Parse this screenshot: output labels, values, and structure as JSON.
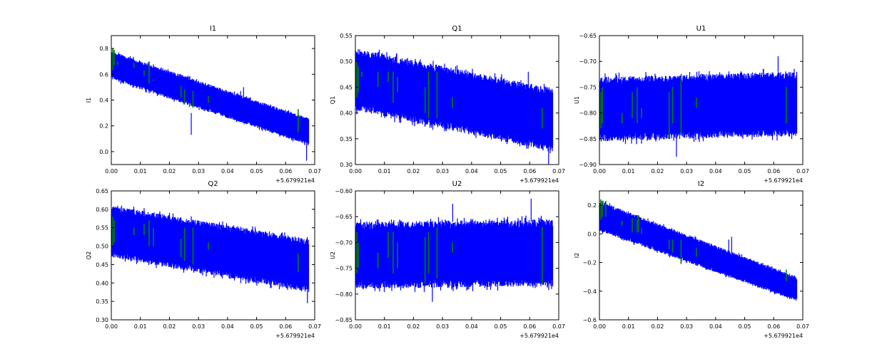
{
  "chart_data": [
    {
      "type": "line",
      "title": "I1",
      "ylabel": "I1",
      "xlim": [
        0,
        0.07
      ],
      "ylim": [
        -0.1,
        0.9
      ],
      "xticks": [
        "0.00",
        "0.01",
        "0.02",
        "0.03",
        "0.04",
        "0.05",
        "0.06",
        "0.07"
      ],
      "yticks": [
        0.0,
        0.2,
        0.4,
        0.6,
        0.8
      ],
      "ytick_labels": [
        "0.0",
        "0.2",
        "0.4",
        "0.6",
        "0.8"
      ],
      "x_offset": "+5.679921e4",
      "series": [
        {
          "name": "blue",
          "color": "#0000ff",
          "x_end": 0.068,
          "lower": [
            0.56,
            0.05
          ],
          "upper": [
            0.78,
            0.26
          ],
          "spikes": [
            [
              0.0275,
              0.13,
              0.3
            ],
            [
              0.0445,
              0.4,
              0.47
            ],
            [
              0.0455,
              0.4,
              0.5
            ],
            [
              0.0672,
              -0.07,
              0.1
            ]
          ]
        },
        {
          "name": "green",
          "color": "#008000",
          "segments": [
            [
              0.0005,
              0.63,
              0.8
            ],
            [
              0.001,
              0.67,
              0.79
            ],
            [
              0.0022,
              0.67,
              0.7
            ],
            [
              0.0078,
              0.65,
              0.69
            ],
            [
              0.0113,
              0.59,
              0.63
            ],
            [
              0.013,
              0.53,
              0.7
            ],
            [
              0.0145,
              0.55,
              0.56
            ],
            [
              0.024,
              0.42,
              0.51
            ],
            [
              0.0252,
              0.38,
              0.48
            ],
            [
              0.0281,
              0.34,
              0.47
            ],
            [
              0.0334,
              0.38,
              0.43
            ],
            [
              0.0643,
              0.15,
              0.33
            ]
          ]
        }
      ]
    },
    {
      "type": "line",
      "title": "Q1",
      "ylabel": "Q1",
      "xlim": [
        0,
        0.07
      ],
      "ylim": [
        0.3,
        0.55
      ],
      "xticks": [
        "0.00",
        "0.01",
        "0.02",
        "0.03",
        "0.04",
        "0.05",
        "0.06",
        "0.07"
      ],
      "yticks": [
        0.3,
        0.35,
        0.4,
        0.45,
        0.5,
        0.55
      ],
      "ytick_labels": [
        "0.30",
        "0.35",
        "0.40",
        "0.45",
        "0.50",
        "0.55"
      ],
      "x_offset": "+5.679921e4",
      "series": [
        {
          "name": "blue",
          "color": "#0000ff",
          "x_end": 0.068,
          "lower": [
            0.405,
            0.325
          ],
          "upper": [
            0.525,
            0.448
          ],
          "spikes": [
            [
              0.0665,
              0.3,
              0.34
            ],
            [
              0.0595,
              0.43,
              0.48
            ]
          ]
        },
        {
          "name": "green",
          "color": "#008000",
          "segments": [
            [
              0.0005,
              0.43,
              0.5
            ],
            [
              0.001,
              0.44,
              0.49
            ],
            [
              0.0022,
              0.47,
              0.48
            ],
            [
              0.0078,
              0.45,
              0.48
            ],
            [
              0.0113,
              0.46,
              0.48
            ],
            [
              0.013,
              0.42,
              0.48
            ],
            [
              0.0145,
              0.44,
              0.47
            ],
            [
              0.024,
              0.4,
              0.45
            ],
            [
              0.0252,
              0.39,
              0.48
            ],
            [
              0.0281,
              0.39,
              0.48
            ],
            [
              0.0334,
              0.41,
              0.43
            ],
            [
              0.0643,
              0.37,
              0.41
            ]
          ]
        }
      ]
    },
    {
      "type": "line",
      "title": "U1",
      "ylabel": "U1",
      "xlim": [
        0,
        0.07
      ],
      "ylim": [
        -0.9,
        -0.65
      ],
      "xticks": [
        "0.00",
        "0.01",
        "0.02",
        "0.03",
        "0.04",
        "0.05",
        "0.06",
        "0.07"
      ],
      "yticks": [
        -0.9,
        -0.85,
        -0.8,
        -0.75,
        -0.7,
        -0.65
      ],
      "ytick_labels": [
        "−0.90",
        "−0.85",
        "−0.80",
        "−0.75",
        "−0.70",
        "−0.65"
      ],
      "x_offset": "+5.679921e4",
      "series": [
        {
          "name": "blue",
          "color": "#0000ff",
          "x_end": 0.068,
          "lower": [
            -0.855,
            -0.845
          ],
          "upper": [
            -0.73,
            -0.72
          ],
          "spikes": [
            [
              0.0265,
              -0.885,
              -0.84
            ],
            [
              0.0615,
              -0.72,
              -0.69
            ]
          ]
        },
        {
          "name": "green",
          "color": "#008000",
          "segments": [
            [
              0.0005,
              -0.83,
              -0.76
            ],
            [
              0.001,
              -0.82,
              -0.75
            ],
            [
              0.0078,
              -0.82,
              -0.8
            ],
            [
              0.0113,
              -0.81,
              -0.76
            ],
            [
              0.013,
              -0.82,
              -0.75
            ],
            [
              0.0145,
              -0.81,
              -0.79
            ],
            [
              0.024,
              -0.85,
              -0.76
            ],
            [
              0.0252,
              -0.82,
              -0.75
            ],
            [
              0.0281,
              -0.84,
              -0.73
            ],
            [
              0.0334,
              -0.79,
              -0.77
            ],
            [
              0.0643,
              -0.82,
              -0.75
            ]
          ]
        }
      ]
    },
    {
      "type": "line",
      "title": "Q2",
      "ylabel": "Q2",
      "xlim": [
        0,
        0.07
      ],
      "ylim": [
        0.3,
        0.65
      ],
      "xticks": [
        "0.00",
        "0.01",
        "0.02",
        "0.03",
        "0.04",
        "0.05",
        "0.06",
        "0.07"
      ],
      "yticks": [
        0.3,
        0.35,
        0.4,
        0.45,
        0.5,
        0.55,
        0.6,
        0.65
      ],
      "ytick_labels": [
        "0.30",
        "0.35",
        "0.40",
        "0.45",
        "0.50",
        "0.55",
        "0.60",
        "0.65"
      ],
      "x_offset": "+5.679921e4",
      "series": [
        {
          "name": "blue",
          "color": "#0000ff",
          "x_end": 0.068,
          "lower": [
            0.47,
            0.375
          ],
          "upper": [
            0.61,
            0.52
          ],
          "spikes": [
            [
              0.0675,
              0.345,
              0.4
            ]
          ]
        },
        {
          "name": "green",
          "color": "#008000",
          "segments": [
            [
              0.0005,
              0.5,
              0.58
            ],
            [
              0.001,
              0.51,
              0.57
            ],
            [
              0.0078,
              0.53,
              0.55
            ],
            [
              0.0113,
              0.53,
              0.56
            ],
            [
              0.013,
              0.5,
              0.57
            ],
            [
              0.0145,
              0.5,
              0.55
            ],
            [
              0.024,
              0.47,
              0.52
            ],
            [
              0.0252,
              0.46,
              0.55
            ],
            [
              0.0281,
              0.45,
              0.55
            ],
            [
              0.0334,
              0.49,
              0.51
            ],
            [
              0.0643,
              0.43,
              0.48
            ]
          ]
        }
      ]
    },
    {
      "type": "line",
      "title": "U2",
      "ylabel": "U2",
      "xlim": [
        0,
        0.07
      ],
      "ylim": [
        -0.85,
        -0.6
      ],
      "xticks": [
        "0.00",
        "0.01",
        "0.02",
        "0.03",
        "0.04",
        "0.05",
        "0.06",
        "0.07"
      ],
      "yticks": [
        -0.85,
        -0.8,
        -0.75,
        -0.7,
        -0.65,
        -0.6
      ],
      "ytick_labels": [
        "−0.85",
        "−0.80",
        "−0.75",
        "−0.70",
        "−0.65",
        "−0.60"
      ],
      "x_offset": "+5.679921e4",
      "series": [
        {
          "name": "blue",
          "color": "#0000ff",
          "x_end": 0.068,
          "lower": [
            -0.79,
            -0.785
          ],
          "upper": [
            -0.66,
            -0.655
          ],
          "spikes": [
            [
              0.0265,
              -0.815,
              -0.78
            ],
            [
              0.0335,
              -0.66,
              -0.625
            ],
            [
              0.0605,
              -0.66,
              -0.615
            ]
          ]
        },
        {
          "name": "green",
          "color": "#008000",
          "segments": [
            [
              0.0005,
              -0.76,
              -0.68
            ],
            [
              0.001,
              -0.75,
              -0.7
            ],
            [
              0.0078,
              -0.75,
              -0.72
            ],
            [
              0.0113,
              -0.73,
              -0.68
            ],
            [
              0.013,
              -0.76,
              -0.68
            ],
            [
              0.0145,
              -0.75,
              -0.7
            ],
            [
              0.024,
              -0.78,
              -0.69
            ],
            [
              0.0252,
              -0.76,
              -0.68
            ],
            [
              0.0281,
              -0.77,
              -0.67
            ],
            [
              0.0334,
              -0.72,
              -0.7
            ],
            [
              0.0643,
              -0.78,
              -0.67
            ]
          ]
        }
      ]
    },
    {
      "type": "line",
      "title": "I2",
      "ylabel": "I2",
      "xlim": [
        0,
        0.07
      ],
      "ylim": [
        -0.6,
        0.3
      ],
      "xticks": [
        "0.00",
        "0.01",
        "0.02",
        "0.03",
        "0.04",
        "0.05",
        "0.06",
        "0.07"
      ],
      "yticks": [
        -0.6,
        -0.4,
        -0.2,
        0.0,
        0.2
      ],
      "ytick_labels": [
        "−0.6",
        "−0.4",
        "−0.2",
        "0.0",
        "0.2"
      ],
      "x_offset": "+5.679921e4",
      "series": [
        {
          "name": "blue",
          "color": "#0000ff",
          "x_end": 0.068,
          "lower": [
            0.02,
            -0.47
          ],
          "upper": [
            0.23,
            -0.3
          ],
          "spikes": [
            [
              0.0445,
              -0.15,
              -0.04
            ],
            [
              0.0455,
              -0.15,
              -0.02
            ]
          ]
        },
        {
          "name": "green",
          "color": "#008000",
          "segments": [
            [
              0.0005,
              0.1,
              0.24
            ],
            [
              0.001,
              0.12,
              0.23
            ],
            [
              0.0022,
              0.12,
              0.23
            ],
            [
              0.0078,
              0.06,
              0.09
            ],
            [
              0.0113,
              0.01,
              0.11
            ],
            [
              0.013,
              0.01,
              0.1
            ],
            [
              0.0135,
              0.01,
              0.13
            ],
            [
              0.0145,
              0.0,
              0.04
            ],
            [
              0.024,
              -0.11,
              -0.04
            ],
            [
              0.0252,
              -0.13,
              -0.04
            ],
            [
              0.0281,
              -0.21,
              -0.04
            ],
            [
              0.0334,
              -0.16,
              -0.1
            ],
            [
              0.0643,
              -0.33,
              -0.25
            ]
          ]
        }
      ]
    }
  ]
}
